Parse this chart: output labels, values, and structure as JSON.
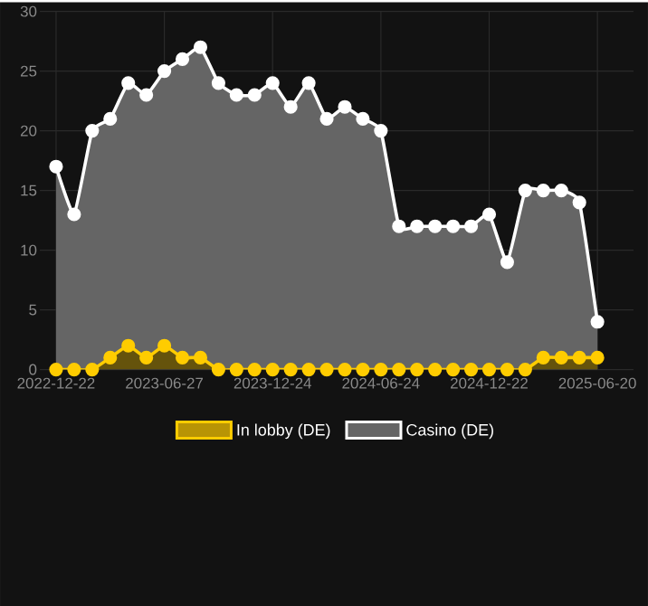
{
  "chart_data": {
    "type": "area",
    "categories": [
      "2022-12-22",
      null,
      null,
      null,
      null,
      null,
      "2023-06-27",
      null,
      null,
      null,
      null,
      null,
      "2023-12-24",
      null,
      null,
      null,
      null,
      null,
      "2024-06-24",
      null,
      null,
      null,
      null,
      null,
      "2024-12-22",
      null,
      null,
      null,
      null,
      null,
      "2025-06-20"
    ],
    "series": [
      {
        "name": "In lobby (DE)",
        "color": "#ffcc00",
        "values": [
          0,
          0,
          0,
          1,
          2,
          1,
          2,
          1,
          1,
          0,
          0,
          0,
          0,
          0,
          0,
          0,
          0,
          0,
          0,
          0,
          0,
          0,
          0,
          0,
          0,
          0,
          0,
          1,
          1,
          1,
          1
        ]
      },
      {
        "name": "Casino (DE)",
        "color": "#ffffff",
        "values": [
          17,
          13,
          20,
          21,
          24,
          23,
          25,
          26,
          27,
          24,
          23,
          23,
          24,
          22,
          24,
          21,
          22,
          21,
          20,
          12,
          12,
          12,
          12,
          12,
          13,
          9,
          15,
          15,
          15,
          14,
          4
        ]
      }
    ],
    "ylim": [
      0,
      30
    ],
    "yticks": [
      0,
      5,
      10,
      15,
      20,
      25,
      30
    ],
    "grid": true,
    "legend": "bottom",
    "marker": "circle",
    "line_style": "solid"
  }
}
